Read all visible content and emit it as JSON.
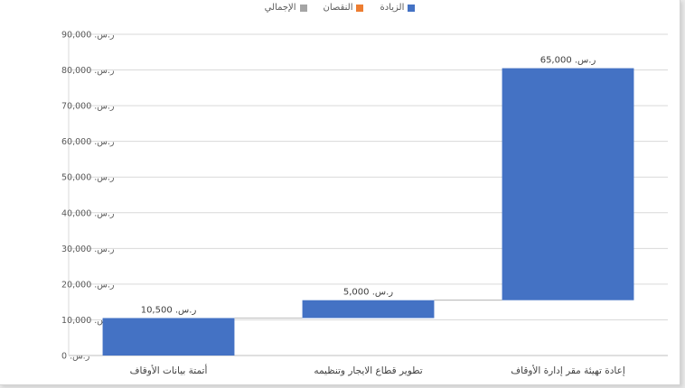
{
  "chart_data": {
    "type": "bar",
    "subtype": "waterfall",
    "legend": {
      "placement": "top",
      "entries": [
        {
          "name": "الزيادة",
          "color": "#4472c4"
        },
        {
          "name": "النقصان",
          "color": "#ed7d31"
        },
        {
          "name": "الإجمالي",
          "color": "#a5a5a5"
        }
      ]
    },
    "categories": [
      "أتمتة بيانات الأوقاف",
      "تطوير قطاع الايجار وتنظيمه",
      "إعادة تهيئة مقر إدارة الأوقاف"
    ],
    "values": [
      10500,
      5000,
      65000
    ],
    "value_labels": [
      "ر.س. 10,500",
      "ر.س. 5,000",
      "ر.س. 65,000"
    ],
    "ylim": [
      0,
      90000
    ],
    "ytick_values": [
      0,
      10000,
      20000,
      30000,
      40000,
      50000,
      60000,
      70000,
      80000,
      90000
    ],
    "ytick_labels": [
      "ر.س. 0",
      "ر.س. 10,000",
      "ر.س. 20,000",
      "ر.س. 30,000",
      "ر.س. 40,000",
      "ر.س. 50,000",
      "ر.س. 60,000",
      "ر.س. 70,000",
      "ر.س. 80,000",
      "ر.س. 90,000"
    ],
    "grid": true,
    "bar_color": "#4472c4",
    "title": "",
    "xlabel": "",
    "ylabel": ""
  }
}
